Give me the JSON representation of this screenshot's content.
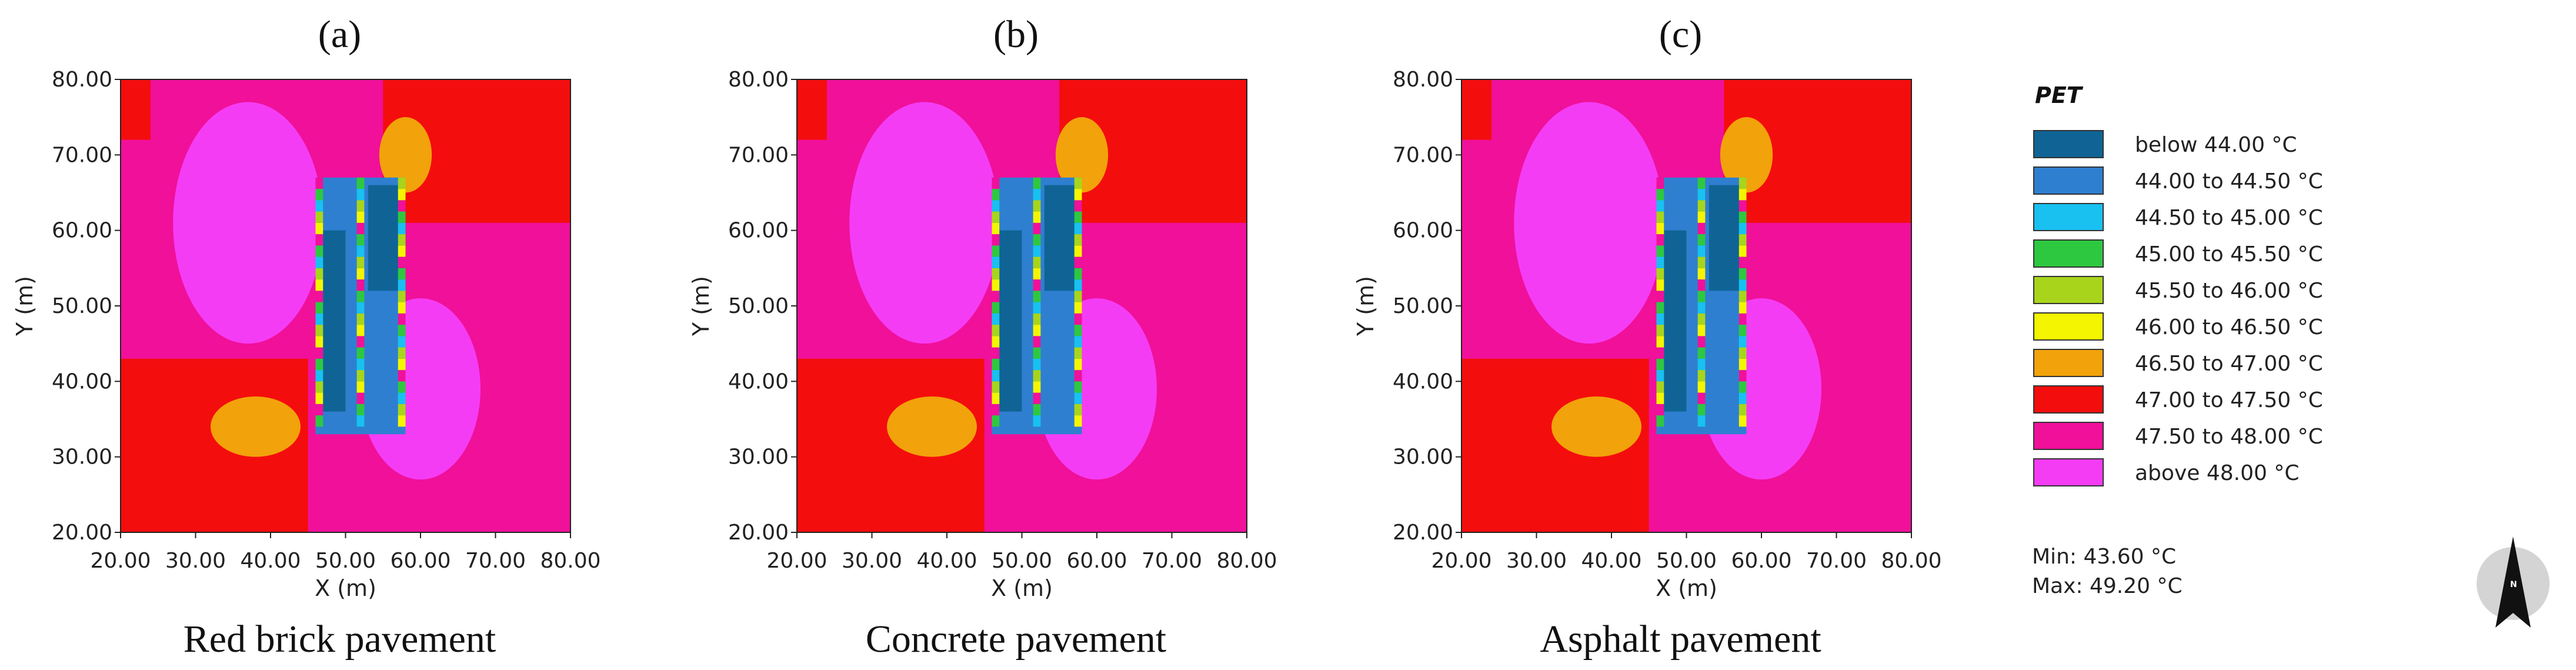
{
  "chart_data": [
    {
      "type": "heatmap",
      "panel_label": "(a)",
      "caption": "Red brick pavement",
      "xlabel": "X (m)",
      "ylabel": "Y (m)",
      "xlim": [
        20,
        80
      ],
      "ylim": [
        20,
        80
      ],
      "xticks": [
        "20.00",
        "30.00",
        "40.00",
        "50.00",
        "60.00",
        "70.00",
        "80.00"
      ],
      "yticks": [
        "20.00",
        "30.00",
        "40.00",
        "50.00",
        "60.00",
        "70.00",
        "80.00"
      ],
      "regions": [
        {
          "shape": "rect",
          "x": [
            20,
            80
          ],
          "y": [
            20,
            80
          ],
          "class": "47.50 to 48.00 °C"
        },
        {
          "shape": "rect",
          "x": [
            20,
            45
          ],
          "y": [
            20,
            43
          ],
          "class": "47.00 to 47.50 °C"
        },
        {
          "shape": "rect",
          "x": [
            55,
            80
          ],
          "y": [
            61,
            80
          ],
          "class": "47.00 to 47.50 °C"
        },
        {
          "shape": "rect",
          "x": [
            20,
            24
          ],
          "y": [
            72,
            80
          ],
          "class": "47.00 to 47.50 °C"
        },
        {
          "shape": "ellipse",
          "cx": 37,
          "cy": 61,
          "rx": 10,
          "ry": 16,
          "class": "above 48.00 °C"
        },
        {
          "shape": "ellipse",
          "cx": 60,
          "cy": 39,
          "rx": 8,
          "ry": 12,
          "class": "above 48.00 °C"
        },
        {
          "shape": "ellipse",
          "cx": 58,
          "cy": 70,
          "rx": 3.5,
          "ry": 5,
          "class": "46.50 to 47.00 °C"
        },
        {
          "shape": "ellipse",
          "cx": 38,
          "cy": 34,
          "rx": 6,
          "ry": 4,
          "class": "46.50 to 47.00 °C"
        },
        {
          "shape": "rect",
          "x": [
            46,
            58
          ],
          "y": [
            33,
            67
          ],
          "class": "44.00 to 44.50 °C"
        },
        {
          "shape": "rect",
          "x": [
            53,
            58
          ],
          "y": [
            52,
            66
          ],
          "class": "below 44.00 °C"
        },
        {
          "shape": "rect",
          "x": [
            47,
            50
          ],
          "y": [
            36,
            60
          ],
          "class": "below 44.00 °C"
        }
      ]
    },
    {
      "type": "heatmap",
      "panel_label": "(b)",
      "caption": "Concrete pavement",
      "xlabel": "X (m)",
      "ylabel": "Y (m)",
      "xlim": [
        20,
        80
      ],
      "ylim": [
        20,
        80
      ],
      "xticks": [
        "20.00",
        "30.00",
        "40.00",
        "50.00",
        "60.00",
        "70.00",
        "80.00"
      ],
      "yticks": [
        "20.00",
        "30.00",
        "40.00",
        "50.00",
        "60.00",
        "70.00",
        "80.00"
      ],
      "regions": [
        {
          "shape": "rect",
          "x": [
            20,
            80
          ],
          "y": [
            20,
            80
          ],
          "class": "47.50 to 48.00 °C"
        },
        {
          "shape": "rect",
          "x": [
            20,
            45
          ],
          "y": [
            20,
            43
          ],
          "class": "47.00 to 47.50 °C"
        },
        {
          "shape": "rect",
          "x": [
            55,
            80
          ],
          "y": [
            61,
            80
          ],
          "class": "47.00 to 47.50 °C"
        },
        {
          "shape": "rect",
          "x": [
            20,
            24
          ],
          "y": [
            72,
            80
          ],
          "class": "47.00 to 47.50 °C"
        },
        {
          "shape": "ellipse",
          "cx": 37,
          "cy": 61,
          "rx": 10,
          "ry": 16,
          "class": "above 48.00 °C"
        },
        {
          "shape": "ellipse",
          "cx": 60,
          "cy": 39,
          "rx": 8,
          "ry": 12,
          "class": "above 48.00 °C"
        },
        {
          "shape": "ellipse",
          "cx": 58,
          "cy": 70,
          "rx": 3.5,
          "ry": 5,
          "class": "46.50 to 47.00 °C"
        },
        {
          "shape": "ellipse",
          "cx": 38,
          "cy": 34,
          "rx": 6,
          "ry": 4,
          "class": "46.50 to 47.00 °C"
        },
        {
          "shape": "rect",
          "x": [
            46,
            58
          ],
          "y": [
            33,
            67
          ],
          "class": "44.00 to 44.50 °C"
        },
        {
          "shape": "rect",
          "x": [
            53,
            58
          ],
          "y": [
            52,
            66
          ],
          "class": "below 44.00 °C"
        },
        {
          "shape": "rect",
          "x": [
            47,
            50
          ],
          "y": [
            36,
            60
          ],
          "class": "below 44.00 °C"
        }
      ]
    },
    {
      "type": "heatmap",
      "panel_label": "(c)",
      "caption": "Asphalt pavement",
      "xlabel": "X (m)",
      "ylabel": "Y (m)",
      "xlim": [
        20,
        80
      ],
      "ylim": [
        20,
        80
      ],
      "xticks": [
        "20.00",
        "30.00",
        "40.00",
        "50.00",
        "60.00",
        "70.00",
        "80.00"
      ],
      "yticks": [
        "20.00",
        "30.00",
        "40.00",
        "50.00",
        "60.00",
        "70.00",
        "80.00"
      ],
      "regions": [
        {
          "shape": "rect",
          "x": [
            20,
            80
          ],
          "y": [
            20,
            80
          ],
          "class": "47.50 to 48.00 °C"
        },
        {
          "shape": "rect",
          "x": [
            20,
            45
          ],
          "y": [
            20,
            43
          ],
          "class": "47.00 to 47.50 °C"
        },
        {
          "shape": "rect",
          "x": [
            55,
            80
          ],
          "y": [
            61,
            80
          ],
          "class": "47.00 to 47.50 °C"
        },
        {
          "shape": "rect",
          "x": [
            20,
            24
          ],
          "y": [
            72,
            80
          ],
          "class": "47.00 to 47.50 °C"
        },
        {
          "shape": "ellipse",
          "cx": 37,
          "cy": 61,
          "rx": 10,
          "ry": 16,
          "class": "above 48.00 °C"
        },
        {
          "shape": "ellipse",
          "cx": 60,
          "cy": 39,
          "rx": 8,
          "ry": 12,
          "class": "above 48.00 °C"
        },
        {
          "shape": "ellipse",
          "cx": 58,
          "cy": 70,
          "rx": 3.5,
          "ry": 5,
          "class": "46.50 to 47.00 °C"
        },
        {
          "shape": "ellipse",
          "cx": 38,
          "cy": 34,
          "rx": 6,
          "ry": 4,
          "class": "46.50 to 47.00 °C"
        },
        {
          "shape": "rect",
          "x": [
            46,
            58
          ],
          "y": [
            33,
            67
          ],
          "class": "44.00 to 44.50 °C"
        },
        {
          "shape": "rect",
          "x": [
            53,
            58
          ],
          "y": [
            52,
            66
          ],
          "class": "below 44.00 °C"
        },
        {
          "shape": "rect",
          "x": [
            47,
            50
          ],
          "y": [
            36,
            60
          ],
          "class": "below 44.00 °C"
        }
      ]
    }
  ],
  "legend": {
    "title": "PET",
    "items": [
      {
        "label": "below 44.00 °C",
        "color": "#0f6495"
      },
      {
        "label": "44.00 to 44.50 °C",
        "color": "#2f7fd0"
      },
      {
        "label": "44.50 to 45.00 °C",
        "color": "#18c1f0"
      },
      {
        "label": "45.00 to 45.50 °C",
        "color": "#2ec840"
      },
      {
        "label": "45.50 to 46.00 °C",
        "color": "#a8d51c"
      },
      {
        "label": "46.00 to 46.50 °C",
        "color": "#f4f500"
      },
      {
        "label": "46.50 to 47.00 °C",
        "color": "#f2a20a"
      },
      {
        "label": "47.00 to 47.50 °C",
        "color": "#f40d0d"
      },
      {
        "label": "47.50 to 48.00 °C",
        "color": "#f0109a"
      },
      {
        "label": "above 48.00 °C",
        "color": "#f53cf5"
      }
    ]
  },
  "stats": {
    "min": "Min: 43.60 °C",
    "max": "Max: 49.20 °C"
  },
  "north_arrow": {
    "icon": "north-arrow-icon",
    "letter": "N"
  }
}
